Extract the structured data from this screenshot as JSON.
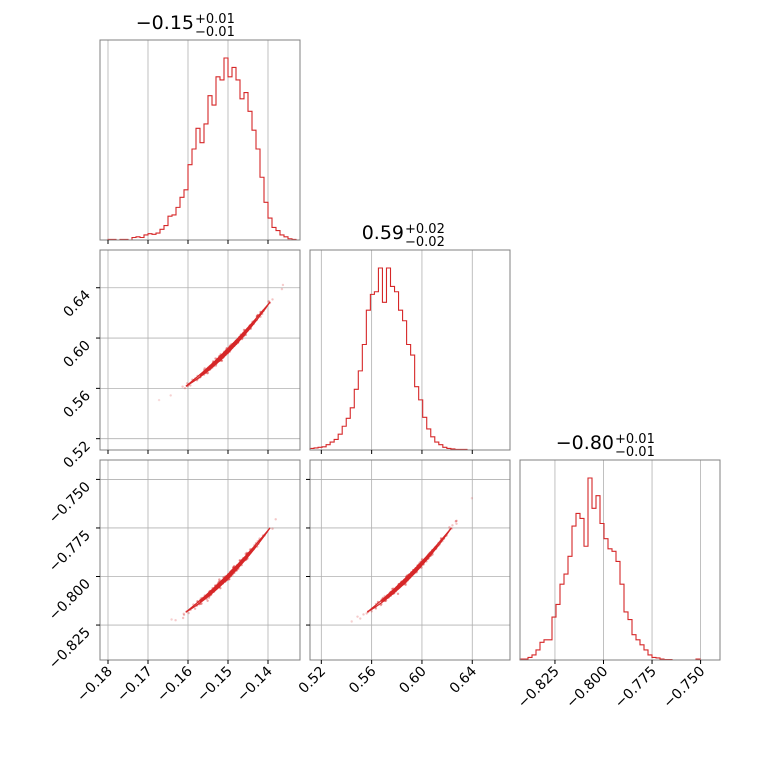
{
  "chart_data": {
    "type": "corner",
    "grid": true,
    "colors": {
      "line": "#d62728",
      "grid": "#b0b0b0",
      "frame": "#808080"
    },
    "parameters": [
      {
        "title_value": "−0.15",
        "title_plus": "+0.01",
        "title_minus": "−0.01",
        "median": -0.15,
        "range": [
          -0.182,
          -0.132
        ],
        "ticks": [
          -0.18,
          -0.17,
          -0.16,
          -0.15,
          -0.14
        ],
        "tick_labels": [
          "−0.18",
          "−0.17",
          "−0.16",
          "−0.15",
          "−0.14"
        ]
      },
      {
        "title_value": "0.59",
        "title_plus": "+0.02",
        "title_minus": "−0.02",
        "median": 0.59,
        "range": [
          0.511,
          0.67
        ],
        "ticks": [
          0.52,
          0.56,
          0.6,
          0.64
        ],
        "tick_labels": [
          "0.52",
          "0.56",
          "0.60",
          "0.64"
        ]
      },
      {
        "title_value": "−0.80",
        "title_plus": "+0.01",
        "title_minus": "−0.01",
        "median": -0.8,
        "range": [
          -0.843,
          -0.74
        ],
        "ticks": [
          -0.825,
          -0.8,
          -0.775,
          -0.75
        ],
        "tick_labels": [
          "−0.825",
          "−0.800",
          "−0.775",
          "−0.750"
        ]
      }
    ],
    "histograms": [
      {
        "parameter": 0,
        "bin_start": -0.182,
        "bin_width": 0.001,
        "counts": [
          0,
          0,
          1,
          1,
          0,
          1,
          1,
          0,
          4,
          5,
          4,
          8,
          10,
          9,
          11,
          17,
          23,
          38,
          40,
          52,
          68,
          80,
          120,
          145,
          178,
          155,
          185,
          230,
          215,
          260,
          255,
          290,
          260,
          275,
          255,
          225,
          235,
          205,
          175,
          145,
          100,
          60,
          35,
          20,
          15,
          8,
          5,
          2,
          1,
          0
        ]
      },
      {
        "parameter": 1,
        "bin_start": 0.511,
        "bin_width": 0.0032,
        "counts": [
          3,
          4,
          5,
          6,
          10,
          15,
          20,
          30,
          45,
          60,
          80,
          115,
          150,
          200,
          265,
          295,
          300,
          345,
          280,
          345,
          310,
          300,
          265,
          245,
          200,
          180,
          120,
          95,
          62,
          40,
          25,
          15,
          10,
          5,
          3,
          2,
          1,
          1,
          1,
          0
        ]
      },
      {
        "parameter": 2,
        "bin_start": -0.843,
        "bin_width": 0.00206,
        "counts": [
          2,
          2,
          5,
          10,
          20,
          35,
          40,
          40,
          85,
          110,
          150,
          170,
          205,
          265,
          290,
          280,
          225,
          360,
          300,
          325,
          270,
          240,
          220,
          215,
          195,
          150,
          95,
          80,
          50,
          40,
          30,
          20,
          10,
          5,
          4,
          2,
          1,
          1,
          0,
          0,
          0,
          0,
          0,
          0,
          2,
          0,
          0,
          0,
          0,
          0
        ]
      }
    ],
    "pair_relations": [
      {
        "x_parameter": 0,
        "y_parameter": 1,
        "relation": "strong positive correlation"
      },
      {
        "x_parameter": 0,
        "y_parameter": 2,
        "relation": "strong positive correlation"
      },
      {
        "x_parameter": 1,
        "y_parameter": 2,
        "relation": "strong positive correlation"
      }
    ]
  }
}
